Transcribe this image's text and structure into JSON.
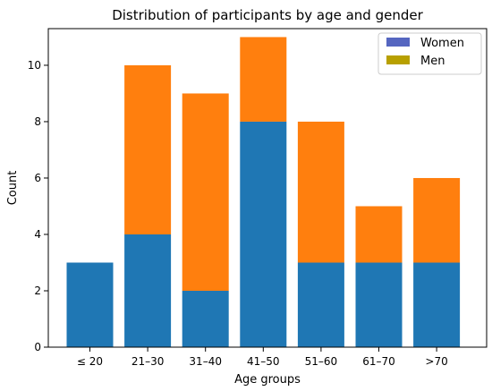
{
  "chart_data": {
    "type": "bar",
    "stacked": true,
    "title": "Distribution of participants by age and gender",
    "xlabel": "Age groups",
    "ylabel": "Count",
    "categories": [
      "≤ 20",
      "21–30",
      "31–40",
      "41–50",
      "51–60",
      "61–70",
      ">70"
    ],
    "ylim": [
      0,
      11.3
    ],
    "yticks": [
      0,
      2,
      4,
      6,
      8,
      10
    ],
    "series": [
      {
        "name": "Women",
        "values": [
          3,
          4,
          2,
          8,
          3,
          3,
          3
        ],
        "color": "#1f77b4",
        "legend_color": "#5566c0"
      },
      {
        "name": "Men",
        "values": [
          0,
          6,
          7,
          3,
          5,
          2,
          3
        ],
        "color": "#ff7f0e",
        "legend_color": "#b8a000"
      }
    ],
    "legend": {
      "position": "top-right"
    },
    "grid": false
  }
}
